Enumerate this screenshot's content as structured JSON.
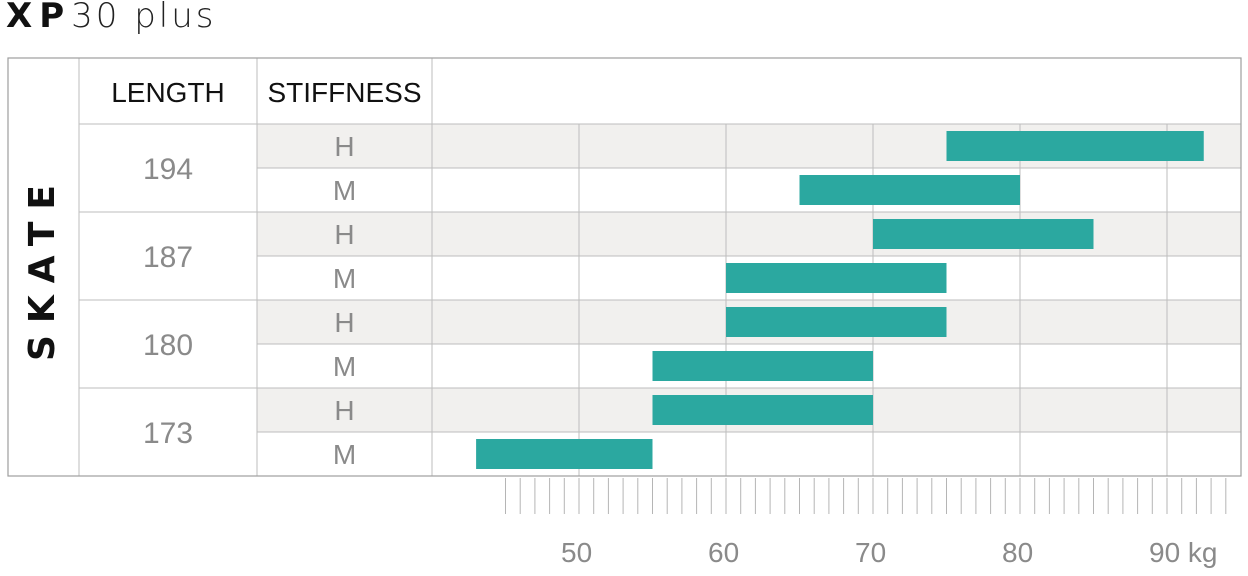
{
  "title": {
    "bold": "XP",
    "light": "30 plus"
  },
  "chart_data": {
    "type": "bar",
    "orientation": "horizontal-range",
    "title": "XP30 plus",
    "side_label": "SKATE",
    "column_headers": {
      "length": "LENGTH",
      "stiffness": "STIFFNESS"
    },
    "x_axis": {
      "unit": "kg",
      "ticks": [
        50,
        60,
        70,
        80,
        90
      ],
      "tick_labels": [
        "50",
        "60",
        "70",
        "80",
        "90 kg"
      ],
      "range": [
        35,
        96
      ],
      "minor_tick_step": 1
    },
    "groups": [
      {
        "length": "194",
        "rows": [
          {
            "stiffness": "H",
            "min": 75,
            "max": 92.5
          },
          {
            "stiffness": "M",
            "min": 65,
            "max": 80
          }
        ]
      },
      {
        "length": "187",
        "rows": [
          {
            "stiffness": "H",
            "min": 70,
            "max": 85
          },
          {
            "stiffness": "M",
            "min": 60,
            "max": 75
          }
        ]
      },
      {
        "length": "180",
        "rows": [
          {
            "stiffness": "H",
            "min": 60,
            "max": 75
          },
          {
            "stiffness": "M",
            "min": 55,
            "max": 70
          }
        ]
      },
      {
        "length": "173",
        "rows": [
          {
            "stiffness": "H",
            "min": 55,
            "max": 70
          },
          {
            "stiffness": "M",
            "min": 43,
            "max": 55
          }
        ]
      }
    ],
    "colors": {
      "bar": "#2ba8a0",
      "shaded_row": "#f1f0ee",
      "grid": "#bdbdbd",
      "border": "#9e9e9e"
    }
  }
}
